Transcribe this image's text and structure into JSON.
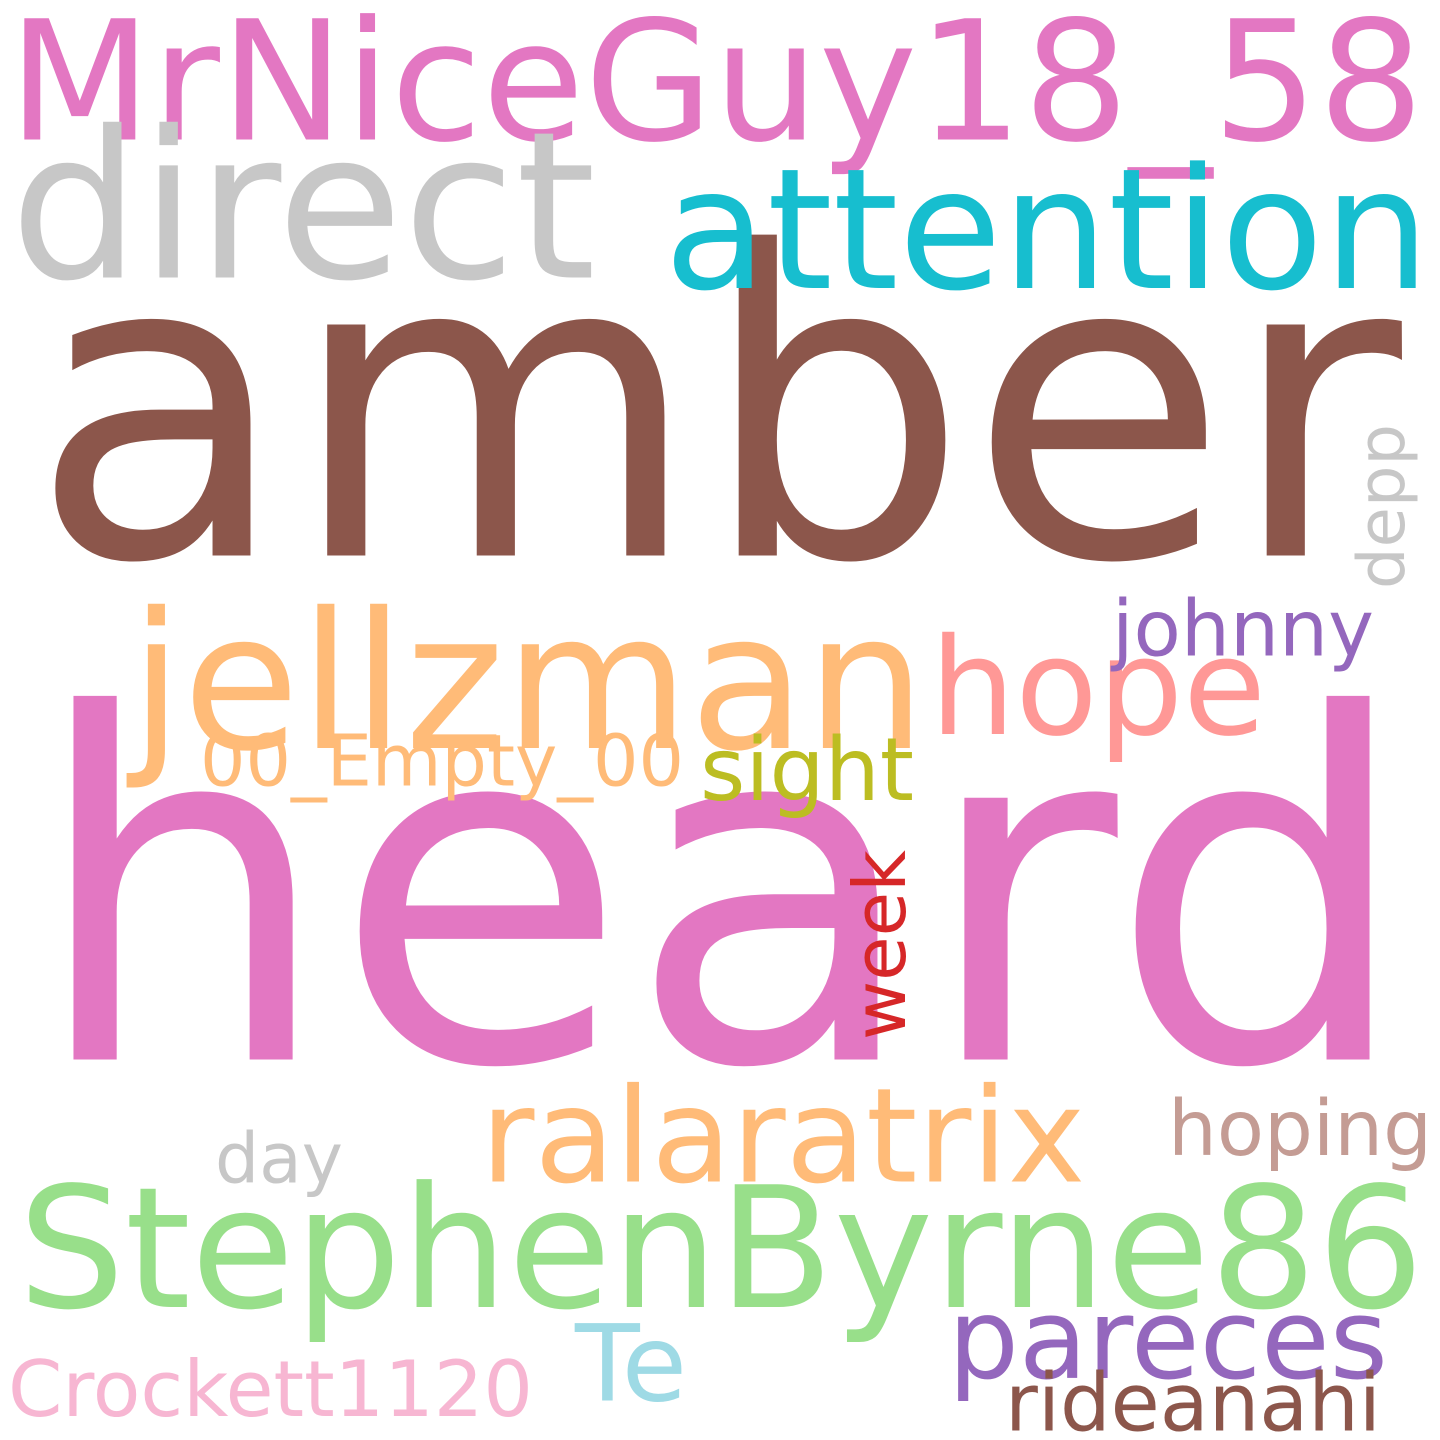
{
  "words": [
    {
      "text": "amber",
      "color": "#8c564b"
    },
    {
      "text": "heard",
      "color": "#e377c2"
    },
    {
      "text": "MrNiceGuy18_58",
      "color": "#e377c2"
    },
    {
      "text": "direct",
      "color": "#c7c7c7"
    },
    {
      "text": "attention",
      "color": "#17becf"
    },
    {
      "text": "jellzman",
      "color": "#ffbb78"
    },
    {
      "text": "hope",
      "color": "#ff9896"
    },
    {
      "text": "johnny",
      "color": "#9467bd"
    },
    {
      "text": "depp",
      "color": "#c7c7c7",
      "vertical": true
    },
    {
      "text": "00_Empty_00",
      "color": "#ffbb78"
    },
    {
      "text": "sight",
      "color": "#bcbd22"
    },
    {
      "text": "week",
      "color": "#d62728",
      "vertical": true
    },
    {
      "text": "ralaratrix",
      "color": "#ffbb78"
    },
    {
      "text": "hoping",
      "color": "#c49c94"
    },
    {
      "text": "day",
      "color": "#c7c7c7"
    },
    {
      "text": "StephenByrne86",
      "color": "#98df8a"
    },
    {
      "text": "pareces",
      "color": "#9467bd"
    },
    {
      "text": "Te",
      "color": "#9edae5"
    },
    {
      "text": "Crockett1120",
      "color": "#f7b6d2"
    },
    {
      "text": "rideanahi",
      "color": "#8c564b"
    }
  ]
}
